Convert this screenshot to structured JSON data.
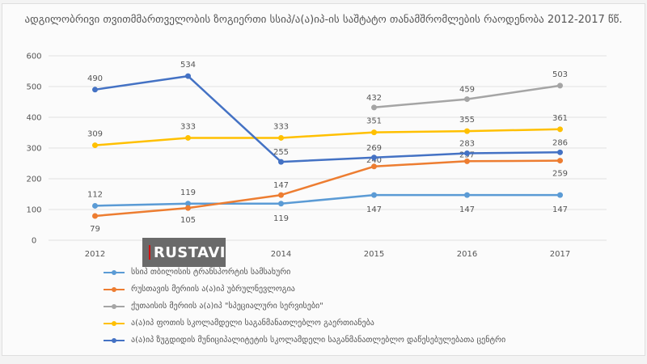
{
  "chart_data": {
    "type": "line",
    "title": "ადგილობრივი თვითმმართველობის ზოგიერთი სსიპ/ა(ა)იპ-ის საშტატო თანამშრომლების რაოდენობა 2012-2017 წწ.",
    "x": [
      "2012",
      "2013",
      "2014",
      "2015",
      "2016",
      "2017"
    ],
    "ylim": [
      0,
      600
    ],
    "yticks": [
      0,
      100,
      200,
      300,
      400,
      500,
      600
    ],
    "grid": true,
    "legend_position": "bottom",
    "series": [
      {
        "name": "სსიპ თბილისის ტრანსპორტის სამსახური",
        "color": "#5b9bd5",
        "values": [
          112,
          119,
          119,
          147,
          147,
          147
        ]
      },
      {
        "name": "რუსთავის მერიის ა(ა)იპ უბრულნევლოგია",
        "color": "#ed7d31",
        "values": [
          79,
          105,
          147,
          240,
          257,
          259
        ]
      },
      {
        "name": "ქუთაისის მერიის ა(ა)იპ \"სპეციალური სერვისები\"",
        "color": "#a5a5a5",
        "values": [
          null,
          null,
          null,
          432,
          459,
          503
        ]
      },
      {
        "name": "ა(ა)იპ ფოთის სკოლამდელი საგანმანათლებლო გაერთიანება",
        "color": "#ffc000",
        "values": [
          309,
          333,
          333,
          351,
          355,
          361
        ]
      },
      {
        "name": "ა(ა)იპ ზუგდიდის მუნიციპალიტეტის სკოლამდელი საგანმანათლებლო დაწესებულებათა ცენტრი",
        "color": "#4472c4",
        "values": [
          490,
          534,
          255,
          269,
          283,
          286
        ]
      }
    ]
  },
  "watermark": {
    "text": "RUSTAVI"
  }
}
